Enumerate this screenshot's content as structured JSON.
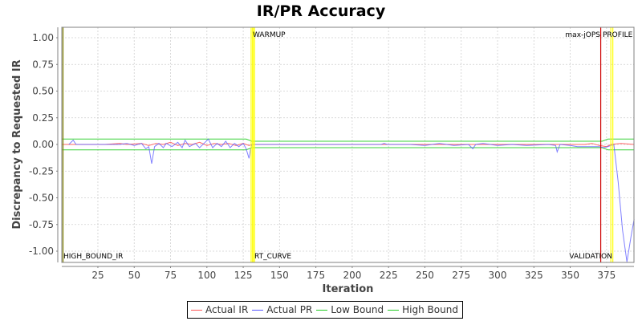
{
  "chart_data": {
    "type": "line",
    "title": "IR/PR Accuracy",
    "xlabel": "Iteration",
    "ylabel": "Discrepancy to Requested IR",
    "xlim": [
      0,
      394
    ],
    "ylim": [
      -1.1,
      1.1
    ],
    "x_ticks": [
      25,
      50,
      75,
      100,
      125,
      150,
      175,
      200,
      225,
      250,
      275,
      300,
      325,
      350,
      375
    ],
    "y_ticks": [
      "1.00",
      "0.75",
      "0.50",
      "0.25",
      "0.00",
      "-0.25",
      "-0.50",
      "-0.75",
      "-1.00"
    ],
    "grid": true,
    "legend_position": "bottom",
    "legend": [
      "Actual IR",
      "Actual PR",
      "Low Bound",
      "High Bound"
    ],
    "colors": {
      "Actual IR": "#ff5555",
      "Actual PR": "#5555ff",
      "Low Bound": "#22cc22",
      "High Bound": "#22cc22"
    },
    "markers": [
      {
        "label": "HIGH_BOUND_IR",
        "x": 1,
        "color": "#808000",
        "label_pos": "bottom"
      },
      {
        "label": "WARMUP",
        "x": 131,
        "color": "#ffff00",
        "label_pos": "top"
      },
      {
        "label": "RT_CURVE",
        "x": 132,
        "color": "#ffff00",
        "label_pos": "bottom"
      },
      {
        "label": "max-jOPS",
        "x": 371,
        "color": "#cc0000",
        "label_pos": "top"
      },
      {
        "label": "PROFILE",
        "x": 378.5,
        "color": "#ffff00",
        "label_pos": "top"
      },
      {
        "label": "VALIDATION",
        "x": 378.5,
        "color": "#ffff00",
        "label_pos": "bottom"
      }
    ],
    "series": [
      {
        "name": "High Bound",
        "points": [
          [
            0,
            0.05
          ],
          [
            127,
            0.05
          ],
          [
            131,
            0.03
          ],
          [
            372,
            0.03
          ],
          [
            376,
            0.05
          ],
          [
            394,
            0.05
          ]
        ]
      },
      {
        "name": "Low Bound",
        "points": [
          [
            0,
            -0.05
          ],
          [
            127,
            -0.05
          ],
          [
            131,
            -0.03
          ],
          [
            372,
            -0.03
          ],
          [
            376,
            -0.05
          ],
          [
            394,
            -0.05
          ]
        ]
      },
      {
        "name": "Actual IR",
        "points": [
          [
            0,
            0
          ],
          [
            30,
            0
          ],
          [
            40,
            0.01
          ],
          [
            45,
            0
          ],
          [
            55,
            0.01
          ],
          [
            60,
            -0.01
          ],
          [
            65,
            0.01
          ],
          [
            70,
            0
          ],
          [
            75,
            0.02
          ],
          [
            80,
            -0.01
          ],
          [
            85,
            0.01
          ],
          [
            90,
            0
          ],
          [
            95,
            0.02
          ],
          [
            100,
            -0.01
          ],
          [
            105,
            0.01
          ],
          [
            110,
            0
          ],
          [
            115,
            0.01
          ],
          [
            120,
            -0.01
          ],
          [
            125,
            0.01
          ],
          [
            129,
            -0.01
          ],
          [
            131,
            0
          ],
          [
            360,
            0
          ],
          [
            365,
            0.01
          ],
          [
            370,
            -0.01
          ],
          [
            375,
            -0.02
          ],
          [
            378,
            0
          ],
          [
            385,
            0.01
          ],
          [
            394,
            0
          ]
        ]
      },
      {
        "name": "Actual PR",
        "points": [
          [
            5,
            0
          ],
          [
            8,
            0.04
          ],
          [
            10,
            0
          ],
          [
            40,
            0
          ],
          [
            45,
            0.01
          ],
          [
            50,
            -0.01
          ],
          [
            55,
            0.01
          ],
          [
            58,
            -0.04
          ],
          [
            60,
            -0.02
          ],
          [
            62,
            -0.18
          ],
          [
            64,
            -0.02
          ],
          [
            67,
            0.01
          ],
          [
            70,
            -0.03
          ],
          [
            72,
            0.01
          ],
          [
            76,
            -0.02
          ],
          [
            80,
            0.02
          ],
          [
            83,
            -0.03
          ],
          [
            85,
            0.04
          ],
          [
            88,
            -0.02
          ],
          [
            92,
            0.01
          ],
          [
            95,
            -0.03
          ],
          [
            98,
            0.01
          ],
          [
            101,
            0.05
          ],
          [
            104,
            -0.03
          ],
          [
            107,
            0.01
          ],
          [
            110,
            -0.02
          ],
          [
            113,
            0.03
          ],
          [
            116,
            -0.03
          ],
          [
            119,
            0.01
          ],
          [
            122,
            -0.02
          ],
          [
            125,
            0.01
          ],
          [
            127,
            -0.04
          ],
          [
            129,
            -0.13
          ],
          [
            130,
            -0.05
          ],
          [
            131,
            0
          ],
          [
            220,
            0
          ],
          [
            222,
            0.01
          ],
          [
            224,
            0
          ],
          [
            240,
            0
          ],
          [
            250,
            -0.01
          ],
          [
            255,
            0
          ],
          [
            260,
            0.01
          ],
          [
            270,
            -0.01
          ],
          [
            280,
            0
          ],
          [
            283,
            -0.04
          ],
          [
            285,
            0
          ],
          [
            290,
            0.01
          ],
          [
            300,
            -0.01
          ],
          [
            310,
            0
          ],
          [
            320,
            -0.01
          ],
          [
            335,
            0
          ],
          [
            340,
            -0.01
          ],
          [
            341,
            -0.07
          ],
          [
            343,
            0
          ],
          [
            350,
            -0.01
          ],
          [
            355,
            -0.02
          ],
          [
            360,
            -0.02
          ],
          [
            365,
            -0.02
          ],
          [
            370,
            -0.02
          ],
          [
            373,
            -0.03
          ],
          [
            376,
            -0.02
          ],
          [
            378,
            -0.01
          ],
          [
            380,
            0
          ],
          [
            383,
            -0.35
          ],
          [
            386,
            -0.8
          ],
          [
            389,
            -1.1
          ],
          [
            392,
            -0.85
          ],
          [
            394,
            -0.7
          ]
        ]
      }
    ]
  },
  "legend_items": [
    {
      "label": "Actual IR",
      "color": "#ff5555"
    },
    {
      "label": "Actual PR",
      "color": "#5555ff"
    },
    {
      "label": "Low Bound",
      "color": "#22cc22"
    },
    {
      "label": "High Bound",
      "color": "#22cc22"
    }
  ]
}
